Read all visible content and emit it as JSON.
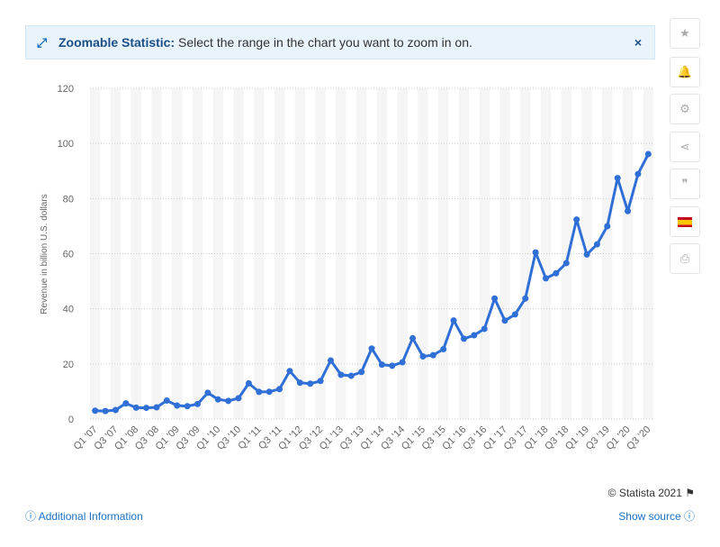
{
  "banner": {
    "title": "Zoomable Statistic:",
    "text": "Select the range in the chart you want to zoom in on."
  },
  "footer": {
    "copyright": "© Statista 2021",
    "additional_info": "Additional Information",
    "show_source": "Show source"
  },
  "chart_data": {
    "type": "line",
    "y_axis_label": "Revenue in billion U.S. dollars",
    "categories": [
      "Q1 '07",
      null,
      "Q3 '07",
      null,
      "Q1 '08",
      null,
      "Q3 '08",
      null,
      "Q1 '09",
      null,
      "Q3 '09",
      null,
      "Q1 '10",
      null,
      "Q3 '10",
      null,
      "Q1 '11",
      null,
      "Q3 '11",
      null,
      "Q1 '12",
      null,
      "Q3 '12",
      null,
      "Q1 '13",
      null,
      "Q3 '13",
      null,
      "Q1 '14",
      null,
      "Q3 '14",
      null,
      "Q1 '15",
      null,
      "Q3 '15",
      null,
      "Q1 '16",
      null,
      "Q3 '16",
      null,
      "Q1 '17",
      null,
      "Q3 '17",
      null,
      "Q1 '18",
      null,
      "Q3 '18",
      null,
      "Q1 '19",
      null,
      "Q3 '19",
      null,
      "Q1 '20",
      null,
      "Q3 '20"
    ],
    "series": [
      {
        "name": "Revenue",
        "color": "#2f6fd6",
        "values": [
          3.02,
          2.89,
          3.26,
          5.67,
          4.13,
          4.06,
          4.26,
          6.7,
          4.89,
          4.65,
          5.45,
          9.52,
          7.13,
          6.57,
          7.56,
          12.95,
          9.86,
          9.91,
          10.88,
          17.43,
          13.18,
          12.83,
          13.81,
          21.27,
          16.07,
          15.7,
          17.09,
          25.59,
          19.74,
          19.34,
          20.58,
          29.33,
          22.72,
          23.18,
          25.36,
          35.75,
          29.13,
          30.4,
          32.71,
          43.74,
          35.71,
          37.96,
          43.74,
          60.45,
          51.04,
          52.89,
          56.58,
          72.38,
          59.7,
          63.4,
          69.98,
          87.44,
          75.45,
          88.91,
          96.15
        ]
      }
    ],
    "ylim": [
      0,
      120
    ],
    "yticks": [
      0,
      20,
      40,
      60,
      80,
      100,
      120
    ],
    "grid": true
  }
}
